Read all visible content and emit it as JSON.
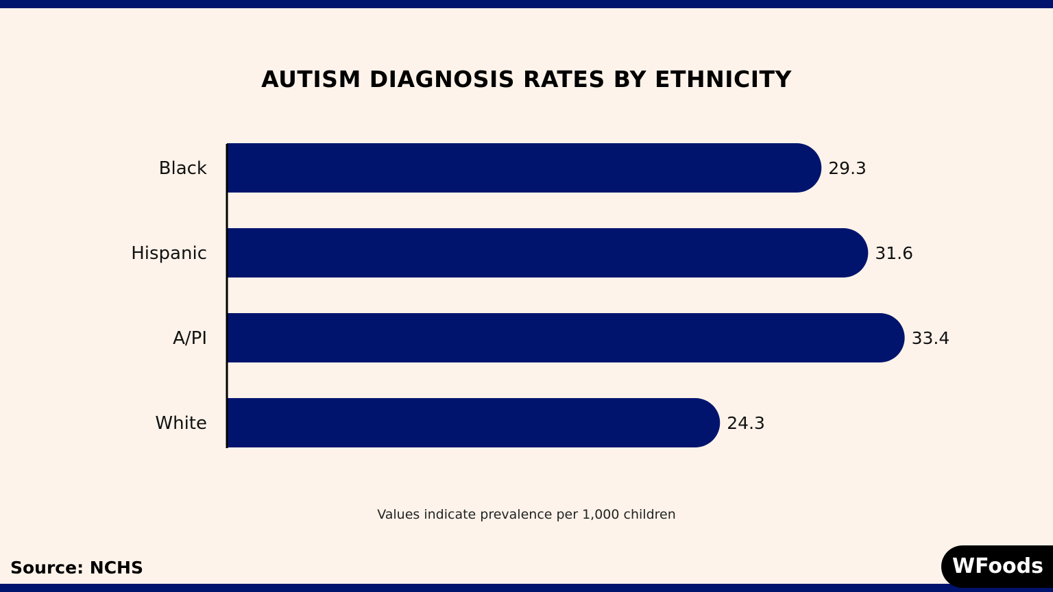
{
  "chart_data": {
    "type": "bar",
    "orientation": "horizontal",
    "title": "AUTISM DIAGNOSIS RATES BY ETHNICITY",
    "categories": [
      "Black",
      "Hispanic",
      "A/PI",
      "White"
    ],
    "values": [
      29.3,
      31.6,
      33.4,
      24.3
    ],
    "data_labels": [
      "29.3",
      "31.6",
      "33.4",
      "24.3"
    ],
    "xlabel": "",
    "ylabel": "",
    "xlim": [
      0,
      35
    ],
    "grid": false,
    "bar_color": "#00146e",
    "note": "Values indicate prevalence per 1,000 children"
  },
  "source": "Source: NCHS",
  "logo_text": "WFoods",
  "colors": {
    "background": "#fdf3ea",
    "band": "#00146e"
  }
}
